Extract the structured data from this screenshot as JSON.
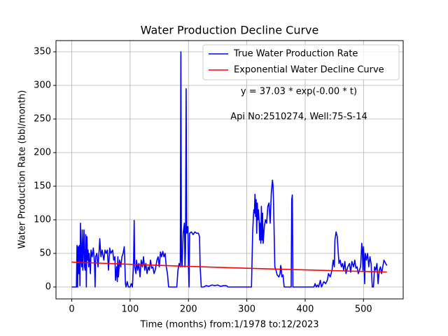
{
  "chart_data": {
    "type": "line",
    "title": "Water Production Decline Curve",
    "x_label": "Time (months) from:1/1978 to:12/2023",
    "y_label": "Water Production Rate (bbl/month)",
    "annotations": [
      "y = 37.03 * exp(-0.00 * t)",
      "Api No:2510274, Well:75-S-14"
    ],
    "xlim": [
      -27,
      568
    ],
    "ylim": [
      -17.7,
      366.7
    ],
    "xticks": [
      0,
      100,
      200,
      300,
      400,
      500
    ],
    "yticks": [
      0,
      50,
      100,
      150,
      200,
      250,
      300,
      350
    ],
    "grid": true,
    "legend": "upper right",
    "series": [
      {
        "name": "True Water Production Rate",
        "color": "#0000ff",
        "x": [
          0,
          8,
          9,
          10,
          11,
          12,
          13,
          14,
          15,
          16,
          17,
          18,
          19,
          20,
          21,
          22,
          23,
          24,
          25,
          26,
          27,
          28,
          29,
          30,
          32,
          33,
          35,
          37,
          39,
          40,
          41,
          43,
          45,
          47,
          48,
          50,
          52,
          55,
          57,
          59,
          61,
          63,
          65,
          67,
          70,
          72,
          74,
          75,
          77,
          78,
          79,
          80,
          82,
          84,
          86,
          88,
          90,
          91,
          92,
          93,
          95,
          97,
          100,
          102,
          104,
          106,
          107,
          108,
          110,
          111,
          113,
          115,
          117,
          119,
          121,
          123,
          125,
          127,
          129,
          131,
          133,
          135,
          137,
          139,
          141,
          143,
          146,
          148,
          150,
          152,
          154,
          156,
          158,
          160,
          162,
          164,
          166,
          180,
          182,
          184,
          186,
          187,
          188,
          189,
          191,
          193,
          194,
          195,
          196,
          197,
          199,
          200,
          201,
          202,
          205,
          208,
          211,
          214,
          217,
          219,
          220,
          222,
          226,
          230,
          235,
          240,
          245,
          250,
          255,
          260,
          265,
          268,
          308,
          310,
          311,
          312,
          313,
          314,
          315,
          316,
          317,
          318,
          319,
          320,
          321,
          322,
          323,
          324,
          325,
          326,
          327,
          328,
          330,
          332,
          334,
          336,
          338,
          340,
          342,
          344,
          345,
          346,
          347,
          348,
          350,
          352,
          355,
          357,
          358,
          359,
          360,
          362,
          364,
          376,
          377,
          378,
          379,
          415,
          417,
          419,
          421,
          423,
          426,
          428,
          432,
          435,
          438,
          440,
          443,
          446,
          448,
          450,
          451,
          453,
          455,
          456,
          458,
          460,
          462,
          464,
          466,
          468,
          470,
          473,
          476,
          478,
          480,
          483,
          485,
          487,
          489,
          491,
          493,
          495,
          497,
          498,
          499,
          500,
          501,
          502,
          503,
          505,
          507,
          509,
          511,
          513,
          515,
          517,
          519,
          521,
          523,
          525,
          527,
          529,
          531,
          533,
          535,
          538,
          540
        ],
        "values": [
          0,
          0,
          62,
          0,
          60,
          20,
          62,
          2,
          95,
          40,
          30,
          85,
          25,
          60,
          85,
          30,
          25,
          78,
          0,
          75,
          40,
          55,
          30,
          50,
          20,
          55,
          45,
          58,
          35,
          0,
          45,
          50,
          30,
          55,
          72,
          45,
          55,
          40,
          55,
          50,
          55,
          25,
          58,
          50,
          55,
          40,
          45,
          10,
          30,
          8,
          45,
          15,
          40,
          30,
          45,
          50,
          60,
          35,
          5,
          0,
          8,
          0,
          0,
          5,
          0,
          40,
          99,
          30,
          20,
          40,
          25,
          35,
          15,
          40,
          30,
          45,
          25,
          35,
          20,
          30,
          25,
          40,
          28,
          30,
          20,
          25,
          40,
          45,
          30,
          52,
          45,
          53,
          45,
          50,
          30,
          20,
          0,
          0,
          25,
          35,
          30,
          350,
          40,
          30,
          80,
          95,
          30,
          55,
          295,
          80,
          90,
          30,
          0,
          80,
          82,
          78,
          82,
          80,
          80,
          75,
          30,
          0,
          0,
          2,
          1,
          3,
          2,
          3,
          1,
          2,
          2,
          0,
          0,
          80,
          100,
          115,
          110,
          138,
          105,
          130,
          80,
          125,
          100,
          115,
          100,
          70,
          95,
          65,
          120,
          70,
          110,
          65,
          90,
          100,
          95,
          120,
          125,
          95,
          140,
          159,
          150,
          120,
          75,
          30,
          25,
          18,
          15,
          20,
          32,
          28,
          15,
          18,
          0,
          0,
          130,
          137,
          0,
          0,
          5,
          0,
          3,
          0,
          10,
          0,
          8,
          5,
          10,
          20,
          15,
          25,
          40,
          30,
          70,
          82,
          75,
          60,
          35,
          40,
          30,
          35,
          25,
          38,
          20,
          30,
          35,
          22,
          38,
          30,
          40,
          28,
          30,
          20,
          25,
          30,
          65,
          55,
          25,
          60,
          40,
          5,
          50,
          40,
          50,
          30,
          45,
          35,
          0,
          0,
          30,
          25,
          35,
          5,
          25,
          30,
          20,
          30,
          40,
          35,
          32
        ]
      },
      {
        "name": "Exponential Water Decline Curve",
        "color": "#ff0000",
        "x": [
          0,
          135,
          270,
          405,
          540
        ],
        "values": [
          37.03,
          32.61,
          28.72,
          25.29,
          22.27
        ]
      }
    ]
  }
}
